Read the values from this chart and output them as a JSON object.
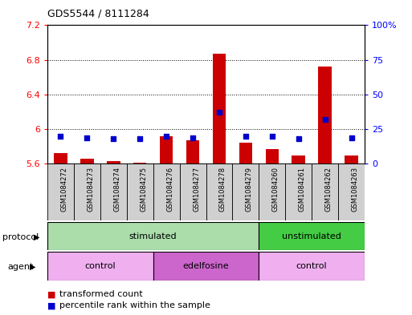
{
  "title": "GDS5544 / 8111284",
  "samples": [
    "GSM1084272",
    "GSM1084273",
    "GSM1084274",
    "GSM1084275",
    "GSM1084276",
    "GSM1084277",
    "GSM1084278",
    "GSM1084279",
    "GSM1084260",
    "GSM1084261",
    "GSM1084262",
    "GSM1084263"
  ],
  "transformed_counts": [
    5.72,
    5.66,
    5.63,
    5.61,
    5.92,
    5.87,
    6.87,
    5.84,
    5.77,
    5.7,
    6.72,
    5.7
  ],
  "percentile_ranks": [
    20,
    19,
    18,
    18,
    20,
    19,
    37,
    20,
    20,
    18,
    32,
    19
  ],
  "ylim_left": [
    5.6,
    7.2
  ],
  "ylim_right": [
    0,
    100
  ],
  "yticks_left": [
    5.6,
    6.0,
    6.4,
    6.8,
    7.2
  ],
  "ytick_labels_left": [
    "5.6",
    "6",
    "6.4",
    "6.8",
    "7.2"
  ],
  "yticks_right": [
    0,
    25,
    50,
    75,
    100
  ],
  "ytick_labels_right": [
    "0",
    "25",
    "50",
    "75",
    "100%"
  ],
  "bar_color": "#cc0000",
  "dot_color": "#0000cc",
  "bar_width": 0.5,
  "sample_bg_color": "#d0d0d0",
  "protocol_groups": [
    {
      "label": "stimulated",
      "start": 0,
      "end": 7,
      "color": "#aaddaa"
    },
    {
      "label": "unstimulated",
      "start": 8,
      "end": 11,
      "color": "#44cc44"
    }
  ],
  "agent_groups": [
    {
      "label": "control",
      "start": 0,
      "end": 3,
      "color": "#f0b0f0"
    },
    {
      "label": "edelfosine",
      "start": 4,
      "end": 7,
      "color": "#cc66cc"
    },
    {
      "label": "control",
      "start": 8,
      "end": 11,
      "color": "#f0b0f0"
    }
  ],
  "legend_items": [
    {
      "label": "transformed count",
      "color": "#cc0000"
    },
    {
      "label": "percentile rank within the sample",
      "color": "#0000cc"
    }
  ]
}
